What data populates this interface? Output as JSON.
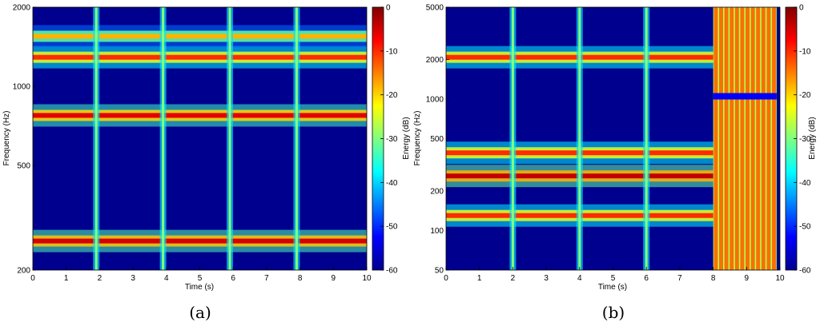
{
  "chart_data": [
    {
      "type": "heatmap",
      "caption": "(a)",
      "xlabel": "Time (s)",
      "ylabel": "Frequency (Hz)",
      "colorbar_label": "Energy (dB)",
      "xlim": [
        0,
        10
      ],
      "ylim": [
        200,
        2000
      ],
      "y_scale": "log",
      "xticks": [
        0,
        1,
        2,
        3,
        4,
        5,
        6,
        7,
        8,
        9,
        10
      ],
      "yticks": [
        200,
        500,
        1000,
        2000
      ],
      "clim": [
        -60,
        0
      ],
      "colorbar_ticks": [
        0,
        -10,
        -20,
        -30,
        -40,
        -50,
        -60
      ],
      "colormap": "jet",
      "onsets_s": [
        1.9,
        3.9,
        5.9,
        7.9
      ],
      "bands": [
        {
          "freq_hz": 258,
          "energy_db": -5
        },
        {
          "freq_hz": 775,
          "energy_db": -6
        },
        {
          "freq_hz": 1290,
          "energy_db": -10
        },
        {
          "freq_hz": 1550,
          "energy_db": -18
        }
      ]
    },
    {
      "type": "heatmap",
      "caption": "(b)",
      "xlabel": "Time (s)",
      "ylabel": "Frequency (Hz)",
      "colorbar_label": "Energy (dB)",
      "xlim": [
        0,
        10
      ],
      "ylim": [
        50,
        5000
      ],
      "y_scale": "log",
      "xticks": [
        0,
        1,
        2,
        3,
        4,
        5,
        6,
        7,
        8,
        9,
        10
      ],
      "yticks": [
        50,
        100,
        200,
        500,
        1000,
        2000,
        5000
      ],
      "clim": [
        -60,
        0
      ],
      "colorbar_ticks": [
        0,
        -10,
        -20,
        -30,
        -40,
        -50,
        -60
      ],
      "colormap": "jet",
      "onsets_s": [
        2.0,
        4.0,
        6.0
      ],
      "noise_region_s": [
        8.0,
        9.9
      ],
      "bands": [
        {
          "freq_hz": 130,
          "energy_db": -10
        },
        {
          "freq_hz": 260,
          "energy_db": -4
        },
        {
          "freq_hz": 390,
          "energy_db": -10
        },
        {
          "freq_hz": 2080,
          "energy_db": -10
        }
      ]
    }
  ]
}
